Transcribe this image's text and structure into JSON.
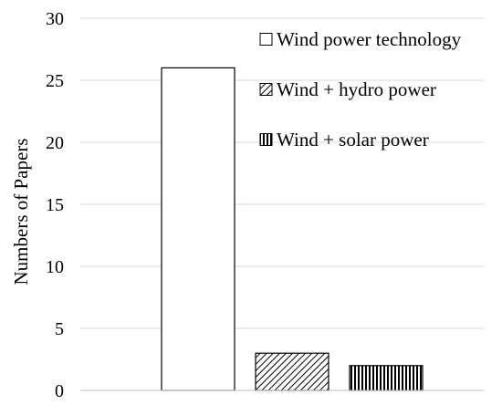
{
  "chart_data": {
    "type": "bar",
    "title": "",
    "xlabel": "",
    "ylabel": "Numbers of Papers",
    "ylim": [
      0,
      30
    ],
    "yticks": [
      0,
      5,
      10,
      15,
      20,
      25,
      30
    ],
    "grid": true,
    "legend_position": "top-right",
    "series": [
      {
        "name": "Wind power technology",
        "values": [
          26
        ],
        "fill": "plain",
        "color": "#ffffff"
      },
      {
        "name": "Wind + hydro power",
        "values": [
          3
        ],
        "fill": "diagonal-hatch",
        "color": "#000000"
      },
      {
        "name": "Wind + solar power",
        "values": [
          2
        ],
        "fill": "vertical-hatch",
        "color": "#000000"
      }
    ]
  }
}
